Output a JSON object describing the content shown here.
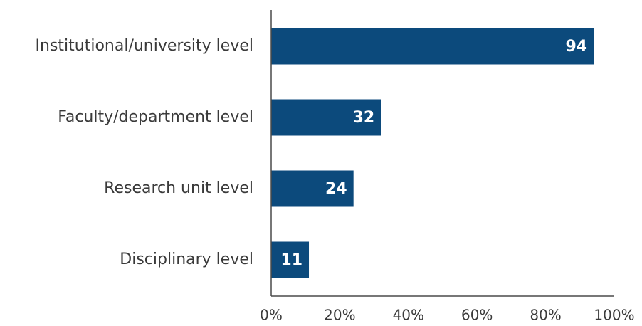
{
  "chart_data": {
    "type": "bar",
    "orientation": "horizontal",
    "categories": [
      "Institutional/university level",
      "Faculty/department level",
      "Research unit level",
      "Disciplinary level"
    ],
    "values": [
      94,
      32,
      24,
      11
    ],
    "data_labels": [
      "94",
      "32",
      "24",
      "11"
    ],
    "xlim": [
      0,
      100
    ],
    "x_ticks": [
      0,
      20,
      40,
      60,
      80,
      100
    ],
    "x_tick_labels": [
      "0%",
      "20%",
      "40%",
      "60%",
      "80%",
      "100%"
    ],
    "title": "",
    "xlabel": "",
    "ylabel": "",
    "grid": false,
    "legend": "none",
    "colors": {
      "bar": "#0c4a7c",
      "axis": "#4a4a4a",
      "text": "#3a3a3a",
      "label": "#ffffff"
    }
  }
}
